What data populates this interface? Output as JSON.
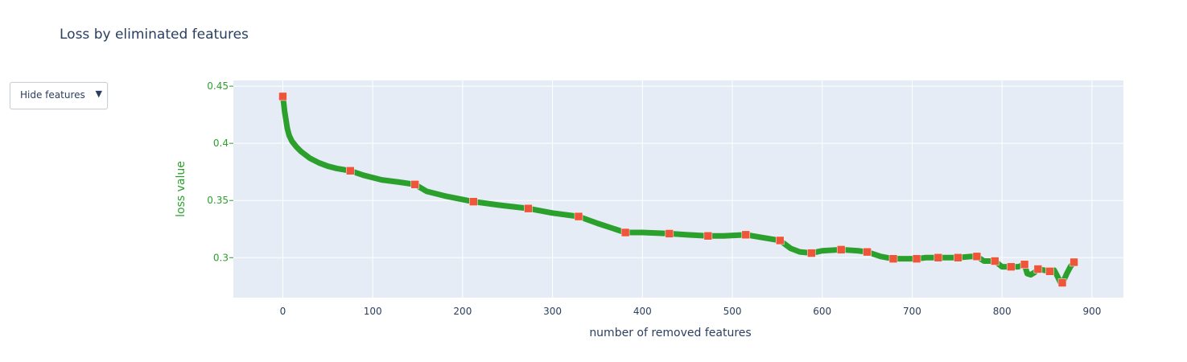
{
  "title": "Loss by eliminated features",
  "dropdown": {
    "label": "Hide features",
    "caret": "▼"
  },
  "colors": {
    "line": "#2ca02c",
    "marker": "#ef553b",
    "plot_bg": "#e5ecf6",
    "grid": "#ffffff",
    "text": "#2a3f5f",
    "yaxis_text": "#2ca02c"
  },
  "chart_data": {
    "type": "line",
    "xlabel": "number of removed features",
    "ylabel": "loss value",
    "xlim": [
      -55,
      935
    ],
    "ylim": [
      0.265,
      0.455
    ],
    "xticks": [
      0,
      100,
      200,
      300,
      400,
      500,
      600,
      700,
      800,
      900
    ],
    "yticks": [
      0.3,
      0.35,
      0.4,
      0.45
    ],
    "ytick_labels": [
      "0.3",
      "0.35",
      "0.4",
      "0.45"
    ],
    "grid": true,
    "series": [
      {
        "mode": "lines+markers",
        "x": [
          0,
          1,
          2,
          3,
          4,
          5,
          7,
          10,
          15,
          20,
          30,
          40,
          50,
          60,
          75,
          90,
          110,
          130,
          147,
          160,
          180,
          212,
          240,
          273,
          300,
          329,
          350,
          381,
          400,
          430,
          450,
          473,
          490,
          515,
          530,
          553,
          565,
          575,
          588,
          600,
          621,
          640,
          650,
          665,
          679,
          690,
          705,
          715,
          729,
          740,
          751,
          765,
          772,
          780,
          792,
          800,
          810,
          818,
          825,
          828,
          832,
          836,
          840,
          847,
          853,
          858,
          862,
          865,
          868,
          872,
          876,
          880
        ],
        "y": [
          0.441,
          0.435,
          0.428,
          0.423,
          0.418,
          0.413,
          0.407,
          0.402,
          0.397,
          0.393,
          0.387,
          0.383,
          0.38,
          0.378,
          0.376,
          0.372,
          0.368,
          0.366,
          0.364,
          0.358,
          0.354,
          0.349,
          0.346,
          0.343,
          0.339,
          0.336,
          0.33,
          0.322,
          0.322,
          0.321,
          0.32,
          0.319,
          0.319,
          0.32,
          0.318,
          0.315,
          0.308,
          0.305,
          0.304,
          0.306,
          0.307,
          0.306,
          0.305,
          0.301,
          0.299,
          0.299,
          0.299,
          0.3,
          0.3,
          0.3,
          0.3,
          0.301,
          0.301,
          0.297,
          0.297,
          0.292,
          0.292,
          0.292,
          0.294,
          0.286,
          0.285,
          0.287,
          0.29,
          0.289,
          0.288,
          0.289,
          0.283,
          0.278,
          0.279,
          0.286,
          0.292,
          0.296
        ]
      },
      {
        "mode": "markers",
        "x": [
          0,
          75,
          147,
          212,
          273,
          329,
          381,
          430,
          473,
          515,
          553,
          588,
          621,
          650,
          679,
          705,
          729,
          751,
          772,
          792,
          810,
          825,
          840,
          853,
          867,
          880
        ],
        "y": [
          0.441,
          0.376,
          0.364,
          0.349,
          0.343,
          0.336,
          0.322,
          0.321,
          0.319,
          0.32,
          0.315,
          0.304,
          0.307,
          0.305,
          0.299,
          0.299,
          0.3,
          0.3,
          0.301,
          0.297,
          0.292,
          0.294,
          0.29,
          0.288,
          0.278,
          0.296
        ]
      }
    ]
  }
}
